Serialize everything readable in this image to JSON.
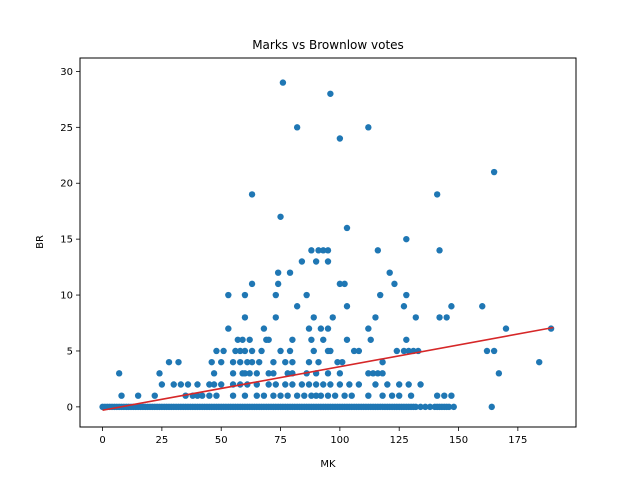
{
  "chart_data": {
    "type": "scatter",
    "title": "Marks vs Brownlow votes",
    "xlabel": "MK",
    "ylabel": "BR",
    "xlim": [
      -9.5,
      199.5
    ],
    "ylim": [
      -1.8,
      31.2
    ],
    "xticks": [
      0,
      25,
      50,
      75,
      100,
      125,
      150,
      175
    ],
    "yticks": [
      0,
      5,
      10,
      15,
      20,
      25,
      30
    ],
    "grid": false,
    "legend": "none",
    "point_color": "#1f77b4",
    "line_color": "#d62728",
    "trend_line": {
      "x": [
        0,
        190
      ],
      "y": [
        -0.3,
        7.1
      ]
    },
    "points": [
      [
        0,
        0
      ],
      [
        1,
        0
      ],
      [
        2,
        0
      ],
      [
        3,
        0
      ],
      [
        4,
        0
      ],
      [
        5,
        0
      ],
      [
        6,
        0
      ],
      [
        7,
        0
      ],
      [
        8,
        0
      ],
      [
        9,
        0
      ],
      [
        10,
        0
      ],
      [
        11,
        0
      ],
      [
        12,
        0
      ],
      [
        13,
        0
      ],
      [
        14,
        0
      ],
      [
        15,
        0
      ],
      [
        16,
        0
      ],
      [
        17,
        0
      ],
      [
        18,
        0
      ],
      [
        19,
        0
      ],
      [
        20,
        0
      ],
      [
        21,
        0
      ],
      [
        22,
        0
      ],
      [
        23,
        0
      ],
      [
        24,
        0
      ],
      [
        25,
        0
      ],
      [
        26,
        0
      ],
      [
        27,
        0
      ],
      [
        28,
        0
      ],
      [
        29,
        0
      ],
      [
        30,
        0
      ],
      [
        31,
        0
      ],
      [
        32,
        0
      ],
      [
        33,
        0
      ],
      [
        34,
        0
      ],
      [
        35,
        0
      ],
      [
        36,
        0
      ],
      [
        37,
        0
      ],
      [
        38,
        0
      ],
      [
        39,
        0
      ],
      [
        40,
        0
      ],
      [
        41,
        0
      ],
      [
        42,
        0
      ],
      [
        43,
        0
      ],
      [
        44,
        0
      ],
      [
        45,
        0
      ],
      [
        46,
        0
      ],
      [
        47,
        0
      ],
      [
        48,
        0
      ],
      [
        49,
        0
      ],
      [
        50,
        0
      ],
      [
        51,
        0
      ],
      [
        52,
        0
      ],
      [
        53,
        0
      ],
      [
        54,
        0
      ],
      [
        55,
        0
      ],
      [
        56,
        0
      ],
      [
        57,
        0
      ],
      [
        58,
        0
      ],
      [
        59,
        0
      ],
      [
        60,
        0
      ],
      [
        61,
        0
      ],
      [
        62,
        0
      ],
      [
        63,
        0
      ],
      [
        64,
        0
      ],
      [
        65,
        0
      ],
      [
        66,
        0
      ],
      [
        67,
        0
      ],
      [
        68,
        0
      ],
      [
        69,
        0
      ],
      [
        70,
        0
      ],
      [
        71,
        0
      ],
      [
        72,
        0
      ],
      [
        73,
        0
      ],
      [
        74,
        0
      ],
      [
        75,
        0
      ],
      [
        76,
        0
      ],
      [
        77,
        0
      ],
      [
        78,
        0
      ],
      [
        79,
        0
      ],
      [
        80,
        0
      ],
      [
        81,
        0
      ],
      [
        82,
        0
      ],
      [
        83,
        0
      ],
      [
        84,
        0
      ],
      [
        85,
        0
      ],
      [
        86,
        0
      ],
      [
        87,
        0
      ],
      [
        88,
        0
      ],
      [
        89,
        0
      ],
      [
        90,
        0
      ],
      [
        91,
        0
      ],
      [
        92,
        0
      ],
      [
        93,
        0
      ],
      [
        94,
        0
      ],
      [
        95,
        0
      ],
      [
        96,
        0
      ],
      [
        97,
        0
      ],
      [
        98,
        0
      ],
      [
        99,
        0
      ],
      [
        100,
        0
      ],
      [
        101,
        0
      ],
      [
        102,
        0
      ],
      [
        103,
        0
      ],
      [
        104,
        0
      ],
      [
        105,
        0
      ],
      [
        106,
        0
      ],
      [
        107,
        0
      ],
      [
        108,
        0
      ],
      [
        109,
        0
      ],
      [
        110,
        0
      ],
      [
        111,
        0
      ],
      [
        112,
        0
      ],
      [
        113,
        0
      ],
      [
        114,
        0
      ],
      [
        115,
        0
      ],
      [
        116,
        0
      ],
      [
        117,
        0
      ],
      [
        118,
        0
      ],
      [
        119,
        0
      ],
      [
        120,
        0
      ],
      [
        121,
        0
      ],
      [
        122,
        0
      ],
      [
        123,
        0
      ],
      [
        124,
        0
      ],
      [
        125,
        0
      ],
      [
        126,
        0
      ],
      [
        127,
        0
      ],
      [
        128,
        0
      ],
      [
        129,
        0
      ],
      [
        130,
        0
      ],
      [
        131,
        0
      ],
      [
        132,
        0
      ],
      [
        134,
        0
      ],
      [
        136,
        0
      ],
      [
        138,
        0
      ],
      [
        140,
        0
      ],
      [
        141,
        0
      ],
      [
        142,
        0
      ],
      [
        143,
        0
      ],
      [
        144,
        0
      ],
      [
        145,
        0
      ],
      [
        146,
        0
      ],
      [
        148,
        0
      ],
      [
        164,
        0
      ],
      [
        8,
        1
      ],
      [
        15,
        1
      ],
      [
        22,
        1
      ],
      [
        35,
        1
      ],
      [
        38,
        1
      ],
      [
        40,
        1
      ],
      [
        42,
        1
      ],
      [
        45,
        1
      ],
      [
        48,
        1
      ],
      [
        55,
        1
      ],
      [
        60,
        1
      ],
      [
        65,
        1
      ],
      [
        68,
        1
      ],
      [
        72,
        1
      ],
      [
        75,
        1
      ],
      [
        78,
        1
      ],
      [
        82,
        1
      ],
      [
        85,
        1
      ],
      [
        88,
        1
      ],
      [
        90,
        1
      ],
      [
        92,
        1
      ],
      [
        95,
        1
      ],
      [
        98,
        1
      ],
      [
        102,
        1
      ],
      [
        105,
        1
      ],
      [
        112,
        1
      ],
      [
        118,
        1
      ],
      [
        122,
        1
      ],
      [
        125,
        1
      ],
      [
        130,
        1
      ],
      [
        141,
        1
      ],
      [
        144,
        1
      ],
      [
        147,
        1
      ],
      [
        25,
        2
      ],
      [
        30,
        2
      ],
      [
        33,
        2
      ],
      [
        36,
        2
      ],
      [
        40,
        2
      ],
      [
        45,
        2
      ],
      [
        47,
        2
      ],
      [
        50,
        2
      ],
      [
        55,
        2
      ],
      [
        58,
        2
      ],
      [
        61,
        2
      ],
      [
        65,
        2
      ],
      [
        70,
        2
      ],
      [
        73,
        2
      ],
      [
        77,
        2
      ],
      [
        80,
        2
      ],
      [
        84,
        2
      ],
      [
        87,
        2
      ],
      [
        90,
        2
      ],
      [
        93,
        2
      ],
      [
        96,
        2
      ],
      [
        100,
        2
      ],
      [
        104,
        2
      ],
      [
        108,
        2
      ],
      [
        115,
        2
      ],
      [
        120,
        2
      ],
      [
        125,
        2
      ],
      [
        129,
        2
      ],
      [
        134,
        2
      ],
      [
        7,
        3
      ],
      [
        24,
        3
      ],
      [
        47,
        3
      ],
      [
        55,
        3
      ],
      [
        59,
        3
      ],
      [
        60,
        3
      ],
      [
        62,
        3
      ],
      [
        65,
        3
      ],
      [
        70,
        3
      ],
      [
        72,
        3
      ],
      [
        78,
        3
      ],
      [
        80,
        3
      ],
      [
        86,
        3
      ],
      [
        90,
        3
      ],
      [
        95,
        3
      ],
      [
        100,
        3
      ],
      [
        112,
        3
      ],
      [
        114,
        3
      ],
      [
        116,
        3
      ],
      [
        118,
        3
      ],
      [
        167,
        3
      ],
      [
        28,
        4
      ],
      [
        32,
        4
      ],
      [
        46,
        4
      ],
      [
        50,
        4
      ],
      [
        55,
        4
      ],
      [
        58,
        4
      ],
      [
        61,
        4
      ],
      [
        63,
        4
      ],
      [
        66,
        4
      ],
      [
        72,
        4
      ],
      [
        77,
        4
      ],
      [
        80,
        4
      ],
      [
        87,
        4
      ],
      [
        91,
        4
      ],
      [
        99,
        4
      ],
      [
        101,
        4
      ],
      [
        118,
        4
      ],
      [
        184,
        4
      ],
      [
        48,
        5
      ],
      [
        51,
        5
      ],
      [
        56,
        5
      ],
      [
        58,
        5
      ],
      [
        60,
        5
      ],
      [
        63,
        5
      ],
      [
        67,
        5
      ],
      [
        75,
        5
      ],
      [
        79,
        5
      ],
      [
        89,
        5
      ],
      [
        95,
        5
      ],
      [
        96,
        5
      ],
      [
        106,
        5
      ],
      [
        108,
        5
      ],
      [
        124,
        5
      ],
      [
        127,
        5
      ],
      [
        129,
        5
      ],
      [
        131,
        5
      ],
      [
        133,
        5
      ],
      [
        162,
        5
      ],
      [
        165,
        5
      ],
      [
        57,
        6
      ],
      [
        59,
        6
      ],
      [
        62,
        6
      ],
      [
        69,
        6
      ],
      [
        70,
        6
      ],
      [
        80,
        6
      ],
      [
        88,
        6
      ],
      [
        93,
        6
      ],
      [
        103,
        6
      ],
      [
        113,
        6
      ],
      [
        128,
        6
      ],
      [
        53,
        7
      ],
      [
        68,
        7
      ],
      [
        87,
        7
      ],
      [
        92,
        7
      ],
      [
        95,
        7
      ],
      [
        112,
        7
      ],
      [
        170,
        7
      ],
      [
        189,
        7
      ],
      [
        60,
        8
      ],
      [
        73,
        8
      ],
      [
        89,
        8
      ],
      [
        97,
        8
      ],
      [
        115,
        8
      ],
      [
        132,
        8
      ],
      [
        142,
        8
      ],
      [
        145,
        8
      ],
      [
        82,
        9
      ],
      [
        103,
        9
      ],
      [
        127,
        9
      ],
      [
        147,
        9
      ],
      [
        160,
        9
      ],
      [
        53,
        10
      ],
      [
        60,
        10
      ],
      [
        73,
        10
      ],
      [
        86,
        10
      ],
      [
        117,
        10
      ],
      [
        128,
        10
      ],
      [
        63,
        11
      ],
      [
        74,
        11
      ],
      [
        100,
        11
      ],
      [
        102,
        11
      ],
      [
        123,
        11
      ],
      [
        74,
        12
      ],
      [
        79,
        12
      ],
      [
        121,
        12
      ],
      [
        84,
        13
      ],
      [
        90,
        13
      ],
      [
        95,
        13
      ],
      [
        88,
        14
      ],
      [
        91,
        14
      ],
      [
        93,
        14
      ],
      [
        95,
        14
      ],
      [
        116,
        14
      ],
      [
        142,
        14
      ],
      [
        128,
        15
      ],
      [
        103,
        16
      ],
      [
        75,
        17
      ],
      [
        63,
        19
      ],
      [
        141,
        19
      ],
      [
        165,
        21
      ],
      [
        82,
        25
      ],
      [
        112,
        25
      ],
      [
        100,
        24
      ],
      [
        76,
        29
      ],
      [
        96,
        28
      ]
    ]
  }
}
